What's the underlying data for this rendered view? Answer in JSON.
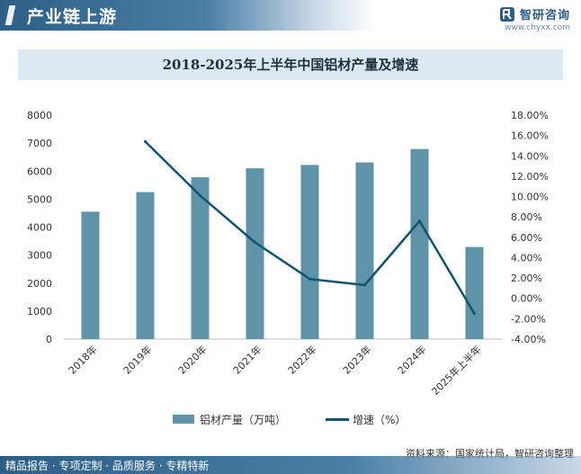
{
  "header": {
    "title": "产业链上游",
    "brand_name": "智研咨询",
    "brand_url": "www.chyxx.com"
  },
  "chart_data": {
    "type": "bar",
    "title": "2018-2025年上半年中国铝材产量及增速",
    "categories": [
      "2018年",
      "2019年",
      "2020年",
      "2021年",
      "2022年",
      "2023年",
      "2024年",
      "2025年上半年"
    ],
    "series": [
      {
        "name": "铝材产量（万吨）",
        "type": "bar",
        "axis": "left",
        "color": "#5f93a8",
        "values": [
          4550,
          5250,
          5780,
          6100,
          6220,
          6310,
          6790,
          3290
        ]
      },
      {
        "name": "增速（%）",
        "type": "line",
        "axis": "right",
        "color": "#0f5470",
        "values": [
          null,
          15.4,
          10.1,
          5.5,
          1.9,
          1.3,
          7.6,
          -1.5
        ]
      }
    ],
    "y_left": {
      "min": 0,
      "max": 8000,
      "step": 1000,
      "ticks": [
        "0",
        "1000",
        "2000",
        "3000",
        "4000",
        "5000",
        "6000",
        "7000",
        "8000"
      ]
    },
    "y_right": {
      "min": -4,
      "max": 18,
      "step": 2,
      "ticks": [
        "-4.00%",
        "-2.00%",
        "0.00%",
        "2.00%",
        "4.00%",
        "6.00%",
        "8.00%",
        "10.00%",
        "12.00%",
        "14.00%",
        "16.00%",
        "18.00%"
      ]
    },
    "grid": false,
    "legend_position": "bottom"
  },
  "source": "资料来源：国家统计局，智研咨询整理",
  "footer": {
    "text": "精品报告 · 专项定制 · 品质服务 · 专精特新"
  }
}
